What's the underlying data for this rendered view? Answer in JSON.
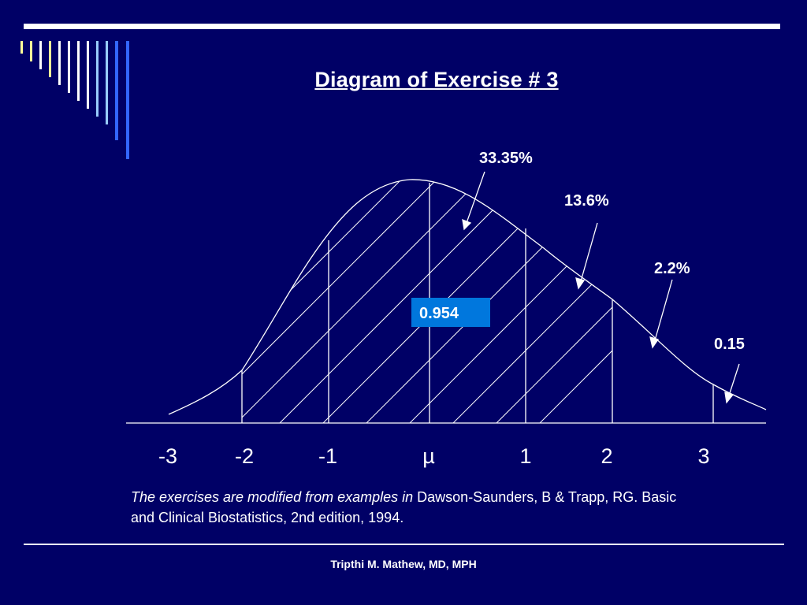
{
  "slide": {
    "title": "Diagram of Exercise # 3",
    "footer": "Tripthi M. Mathew, MD, MPH"
  },
  "diagram": {
    "annotations": {
      "a1": "33.35%",
      "a2": "13.6%",
      "a3": "2.2%",
      "a4": "0.15"
    },
    "boxed_value": "0.954",
    "axis_labels": [
      "-3",
      "-2",
      "-1",
      "µ",
      "1",
      "2",
      "3"
    ]
  },
  "citation": {
    "italic_part": "The exercises are modified from examples in",
    "normal_part": " Dawson-Saunders, B & Trapp, RG. Basic and Clinical Biostatistics, 2nd edition, 1994."
  },
  "colors": {
    "background": "#000066",
    "deco_bars": [
      "#ffff99",
      "#ffffff",
      "#99ccff",
      "#3366ff"
    ],
    "box": "#0077dd"
  }
}
